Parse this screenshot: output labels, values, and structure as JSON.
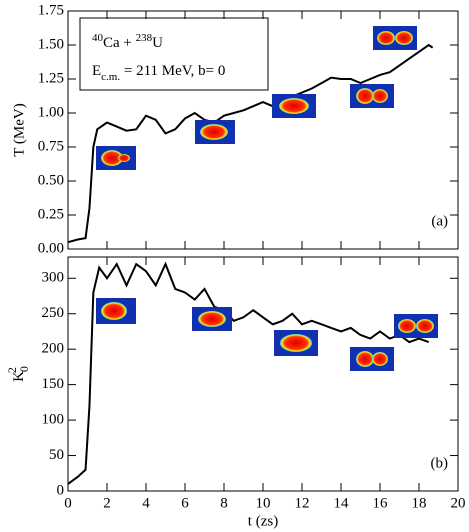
{
  "chart_data": [
    {
      "type": "line",
      "ylabel": "T (MeV)",
      "panel_label": "(a)",
      "annotation": {
        "line1": [
          "40",
          "Ca + ",
          "238",
          "U"
        ],
        "line2": [
          "E",
          "c.m.",
          " = 211 MeV, b= 0"
        ]
      },
      "xlim": [
        0,
        20
      ],
      "xticks": [
        0,
        2,
        4,
        6,
        8,
        10,
        12,
        14,
        16,
        18,
        20
      ],
      "xtick_labels": false,
      "ylim": [
        0,
        1.75
      ],
      "yticks": [
        {
          "value": 0,
          "label": "0.00"
        },
        {
          "value": 0.25,
          "label": "0.25"
        },
        {
          "value": 0.5,
          "label": "0.50"
        },
        {
          "value": 0.75,
          "label": "0.75"
        },
        {
          "value": 1,
          "label": "1.00"
        },
        {
          "value": 1.25,
          "label": "1.25"
        },
        {
          "value": 1.5,
          "label": "1.50"
        },
        {
          "value": 1.75,
          "label": "1.75"
        }
      ],
      "color": "#000000",
      "x": [
        0,
        0.5,
        0.9,
        1.1,
        1.3,
        1.5,
        2,
        2.5,
        3,
        3.5,
        4,
        4.5,
        5,
        5.5,
        6,
        6.5,
        7,
        7.5,
        8,
        8.5,
        9,
        9.5,
        10,
        10.5,
        11,
        11.5,
        12,
        12.5,
        13,
        13.5,
        14,
        14.5,
        15,
        15.5,
        16,
        16.5,
        17,
        17.5,
        18,
        18.5,
        18.7
      ],
      "values": [
        0.05,
        0.07,
        0.08,
        0.3,
        0.75,
        0.88,
        0.93,
        0.9,
        0.87,
        0.88,
        0.98,
        0.95,
        0.85,
        0.88,
        0.96,
        1.0,
        0.95,
        0.93,
        0.98,
        1.0,
        1.02,
        1.05,
        1.08,
        1.05,
        1.1,
        1.12,
        1.15,
        1.18,
        1.22,
        1.26,
        1.25,
        1.25,
        1.22,
        1.25,
        1.28,
        1.3,
        1.35,
        1.4,
        1.45,
        1.5,
        1.48
      ]
    },
    {
      "type": "line",
      "ylabel": [
        "K",
        "0",
        "2"
      ],
      "xlabel": "t (zs)",
      "panel_label": "(b)",
      "xlim": [
        0,
        20
      ],
      "xticks": [
        0,
        2,
        4,
        6,
        8,
        10,
        12,
        14,
        16,
        18,
        20
      ],
      "xtick_labels": true,
      "ylim": [
        0,
        330
      ],
      "yticks": [
        0,
        50,
        100,
        150,
        200,
        250,
        300
      ],
      "color": "#000000",
      "x": [
        0,
        0.5,
        0.9,
        1.1,
        1.3,
        1.6,
        2,
        2.5,
        3,
        3.5,
        4,
        4.5,
        5,
        5.5,
        6,
        6.5,
        7,
        7.5,
        8,
        8.5,
        9,
        9.5,
        10,
        10.5,
        11,
        11.5,
        12,
        12.5,
        13,
        13.5,
        14,
        14.5,
        15,
        15.5,
        16,
        16.5,
        17,
        17.5,
        18,
        18.5
      ],
      "values": [
        10,
        20,
        30,
        120,
        280,
        315,
        300,
        320,
        290,
        320,
        310,
        290,
        320,
        285,
        280,
        270,
        285,
        260,
        255,
        240,
        245,
        255,
        245,
        235,
        240,
        250,
        235,
        240,
        235,
        230,
        225,
        230,
        220,
        215,
        225,
        215,
        220,
        210,
        215,
        210
      ]
    }
  ]
}
